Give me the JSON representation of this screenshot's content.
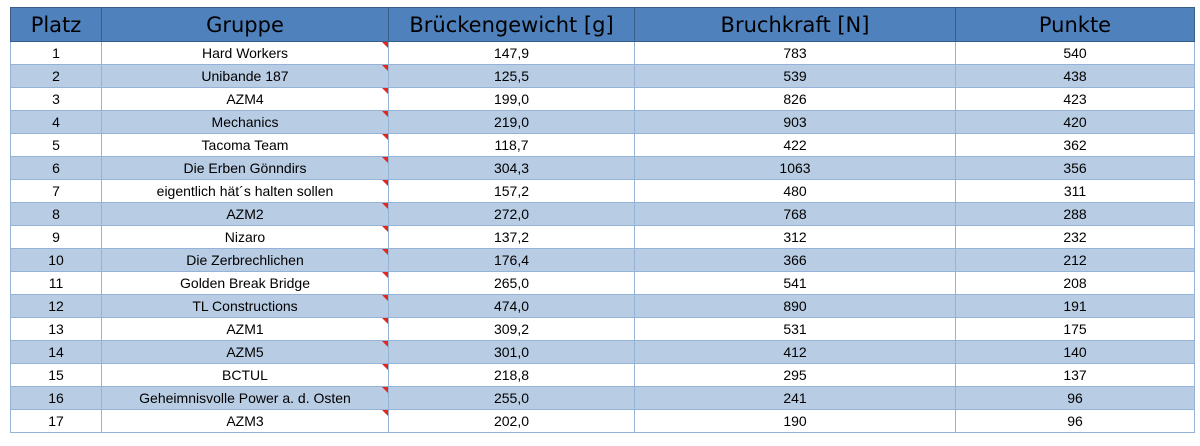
{
  "headers": [
    "Platz",
    "Gruppe",
    "Brückengewicht [g]",
    "Bruchkraft [N]",
    "Punkte"
  ],
  "rows": [
    [
      "1",
      "Hard Workers",
      "147,9",
      "783",
      "540"
    ],
    [
      "2",
      "Unibande 187",
      "125,5",
      "539",
      "438"
    ],
    [
      "3",
      "AZM4",
      "199,0",
      "826",
      "423"
    ],
    [
      "4",
      "Mechanics",
      "219,0",
      "903",
      "420"
    ],
    [
      "5",
      "Tacoma Team",
      "118,7",
      "422",
      "362"
    ],
    [
      "6",
      "Die Erben Gönndirs",
      "304,3",
      "1063",
      "356"
    ],
    [
      "7",
      "eigentlich hät´s halten sollen",
      "157,2",
      "480",
      "311"
    ],
    [
      "8",
      "AZM2",
      "272,0",
      "768",
      "288"
    ],
    [
      "9",
      "Nizaro",
      "137,2",
      "312",
      "232"
    ],
    [
      "10",
      "Die Zerbrechlichen",
      "176,4",
      "366",
      "212"
    ],
    [
      "11",
      "Golden Break Bridge",
      "265,0",
      "541",
      "208"
    ],
    [
      "12",
      "TL Constructions",
      "474,0",
      "890",
      "191"
    ],
    [
      "13",
      "AZM1",
      "309,2",
      "531",
      "175"
    ],
    [
      "14",
      "AZM5",
      "301,0",
      "412",
      "140"
    ],
    [
      "15",
      "BCTUL",
      "218,8",
      "295",
      "137"
    ],
    [
      "16",
      "Geheimnisvolle Power a. d. Osten",
      "255,0",
      "241",
      "96"
    ],
    [
      "17",
      "AZM3",
      "202,0",
      "190",
      "96"
    ]
  ],
  "colors": {
    "header_bg": "#4f81bd",
    "band_bg": "#b8cce4",
    "row_bg": "#ffffff",
    "comment_marker": "#e0281f"
  }
}
